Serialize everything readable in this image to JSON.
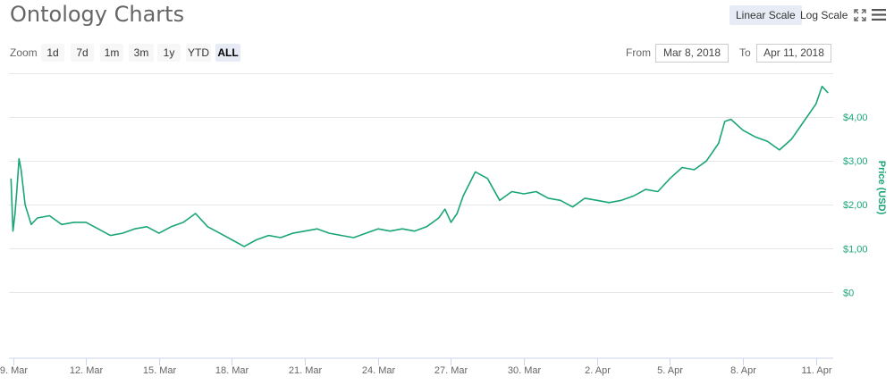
{
  "header": {
    "title": "Ontology Charts",
    "linear_scale": "Linear Scale",
    "log_scale": "Log Scale"
  },
  "icons": {
    "fullscreen": "fullscreen-icon",
    "menu": "hamburger-menu-icon"
  },
  "zoom": {
    "label": "Zoom",
    "buttons": [
      "1d",
      "7d",
      "1m",
      "3m",
      "1y",
      "YTD",
      "ALL"
    ],
    "active": "ALL"
  },
  "range": {
    "from_label": "From",
    "from_value": "Mar 8, 2018",
    "to_label": "To",
    "to_value": "Apr 11, 2018"
  },
  "colors": {
    "line": "#1aa579",
    "axis_label": "#1aa579",
    "grid": "#e6e6e6",
    "active_button": "#e6ebf5"
  },
  "chart_data": {
    "type": "line",
    "title": "Ontology Charts",
    "xlabel": "",
    "ylabel": "Price (USD)",
    "ylim": [
      -1.5,
      5
    ],
    "y_ticks": [
      0,
      1,
      2,
      3,
      4
    ],
    "y_tick_labels": [
      "$0",
      "$1,00",
      "$2,00",
      "$3,00",
      "$4,00"
    ],
    "x_ticks": [
      {
        "x": "2018-03-09",
        "label": "9. Mar"
      },
      {
        "x": "2018-03-12",
        "label": "12. Mar"
      },
      {
        "x": "2018-03-15",
        "label": "15. Mar"
      },
      {
        "x": "2018-03-18",
        "label": "18. Mar"
      },
      {
        "x": "2018-03-21",
        "label": "21. Mar"
      },
      {
        "x": "2018-03-24",
        "label": "24. Mar"
      },
      {
        "x": "2018-03-27",
        "label": "27. Mar"
      },
      {
        "x": "2018-03-30",
        "label": "30. Mar"
      },
      {
        "x": "2018-04-02",
        "label": "2. Apr"
      },
      {
        "x": "2018-04-05",
        "label": "5. Apr"
      },
      {
        "x": "2018-04-08",
        "label": "8. Apr"
      },
      {
        "x": "2018-04-11",
        "label": "11. Apr"
      }
    ],
    "grid": true,
    "legend": false,
    "series": [
      {
        "x": [
          "2018-03-08 22:00",
          "2018-03-09 00:00",
          "2018-03-09 02:00",
          "2018-03-09 04:00",
          "2018-03-09 06:00",
          "2018-03-09 08:00",
          "2018-03-09 12:00",
          "2018-03-09 18:00",
          "2018-03-10 00:00",
          "2018-03-10 12:00",
          "2018-03-11 00:00",
          "2018-03-11 12:00",
          "2018-03-12 00:00",
          "2018-03-12 12:00",
          "2018-03-13 00:00",
          "2018-03-13 12:00",
          "2018-03-14 00:00",
          "2018-03-14 12:00",
          "2018-03-15 00:00",
          "2018-03-15 12:00",
          "2018-03-16 00:00",
          "2018-03-16 12:00",
          "2018-03-17 00:00",
          "2018-03-17 12:00",
          "2018-03-18 00:00",
          "2018-03-18 12:00",
          "2018-03-19 00:00",
          "2018-03-19 12:00",
          "2018-03-20 00:00",
          "2018-03-20 12:00",
          "2018-03-21 00:00",
          "2018-03-21 12:00",
          "2018-03-22 00:00",
          "2018-03-22 12:00",
          "2018-03-23 00:00",
          "2018-03-23 12:00",
          "2018-03-24 00:00",
          "2018-03-24 12:00",
          "2018-03-25 00:00",
          "2018-03-25 12:00",
          "2018-03-26 00:00",
          "2018-03-26 12:00",
          "2018-03-26 18:00",
          "2018-03-27 00:00",
          "2018-03-27 06:00",
          "2018-03-27 12:00",
          "2018-03-28 00:00",
          "2018-03-28 12:00",
          "2018-03-29 00:00",
          "2018-03-29 06:00",
          "2018-03-29 12:00",
          "2018-03-30 00:00",
          "2018-03-30 12:00",
          "2018-03-31 00:00",
          "2018-03-31 12:00",
          "2018-04-01 00:00",
          "2018-04-01 12:00",
          "2018-04-02 00:00",
          "2018-04-02 12:00",
          "2018-04-03 00:00",
          "2018-04-03 12:00",
          "2018-04-04 00:00",
          "2018-04-04 12:00",
          "2018-04-05 00:00",
          "2018-04-05 12:00",
          "2018-04-06 00:00",
          "2018-04-06 12:00",
          "2018-04-07 00:00",
          "2018-04-07 06:00",
          "2018-04-07 12:00",
          "2018-04-08 00:00",
          "2018-04-08 12:00",
          "2018-04-09 00:00",
          "2018-04-09 12:00",
          "2018-04-10 00:00",
          "2018-04-10 12:00",
          "2018-04-11 00:00",
          "2018-04-11 06:00",
          "2018-04-11 12:00"
        ],
        "y": [
          2.6,
          1.4,
          1.8,
          2.4,
          3.05,
          2.8,
          2.0,
          1.55,
          1.7,
          1.75,
          1.55,
          1.6,
          1.6,
          1.45,
          1.3,
          1.35,
          1.45,
          1.5,
          1.35,
          1.5,
          1.6,
          1.8,
          1.5,
          1.35,
          1.2,
          1.05,
          1.2,
          1.3,
          1.25,
          1.35,
          1.4,
          1.45,
          1.35,
          1.3,
          1.25,
          1.35,
          1.45,
          1.4,
          1.45,
          1.4,
          1.5,
          1.7,
          1.9,
          1.6,
          1.8,
          2.2,
          2.75,
          2.6,
          2.1,
          2.2,
          2.3,
          2.25,
          2.3,
          2.15,
          2.1,
          1.95,
          2.15,
          2.1,
          2.05,
          2.1,
          2.2,
          2.35,
          2.3,
          2.6,
          2.85,
          2.8,
          3.0,
          3.4,
          3.9,
          3.95,
          3.7,
          3.55,
          3.45,
          3.25,
          3.5,
          3.9,
          4.3,
          4.7,
          4.55
        ]
      }
    ]
  }
}
